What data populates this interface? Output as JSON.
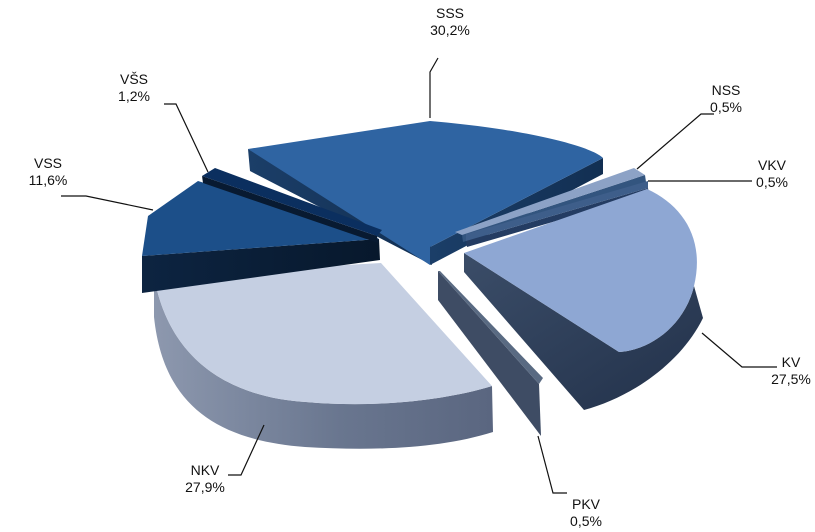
{
  "chart_data": {
    "type": "pie",
    "title": "",
    "categories": [
      "SSS",
      "NSS",
      "VKV",
      "KV",
      "PKV",
      "NKV",
      "VSS",
      "VŠS"
    ],
    "values": [
      30.2,
      0.5,
      0.5,
      27.5,
      0.5,
      27.9,
      11.6,
      1.2
    ],
    "labels": [
      "30,2%",
      "0,5%",
      "0,5%",
      "27,5%",
      "0,5%",
      "27,9%",
      "11,6%",
      "1,2%"
    ],
    "colors": {
      "SSS": "#2f64a2",
      "NSS": "#8ca2c6",
      "VKV": "#3e5e8a",
      "KV": "#8ea7d3",
      "PKV": "#596a82",
      "NKV": "#c5cfe2",
      "VSS": "#1c4f89",
      "VŠS": "#0b2f5f"
    }
  }
}
